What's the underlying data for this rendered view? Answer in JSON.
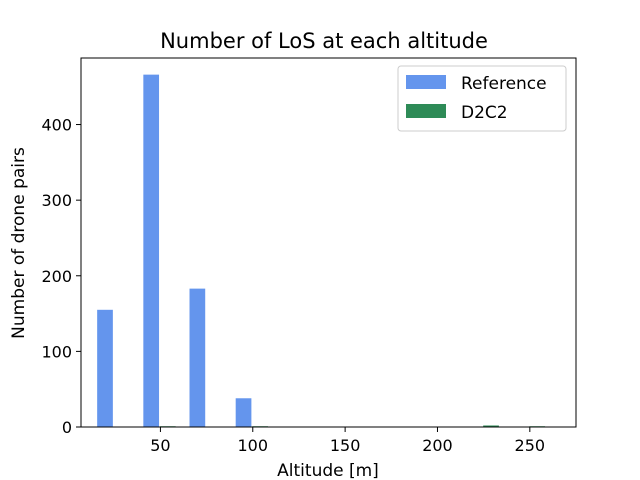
{
  "chart_data": {
    "type": "bar",
    "title": "Number of LoS at each altitude",
    "xlabel": "Altitude [m]",
    "ylabel": "Number of drone pairs",
    "xlim": [
      7,
      275
    ],
    "ylim": [
      0,
      488
    ],
    "xticks": [
      50,
      100,
      150,
      200,
      250
    ],
    "yticks": [
      0,
      100,
      200,
      300,
      400
    ],
    "bar_width": 8.5,
    "legend_position": "upper right",
    "grid": false,
    "series": [
      {
        "name": "Reference",
        "color": "#6495ED",
        "x": [
          20,
          45,
          70,
          95
        ],
        "values": [
          155,
          466,
          183,
          38
        ]
      },
      {
        "name": "D2C2",
        "color": "#2E8B57",
        "x": [
          54,
          104,
          229,
          254
        ],
        "values": [
          1,
          1,
          2,
          1
        ]
      }
    ]
  }
}
